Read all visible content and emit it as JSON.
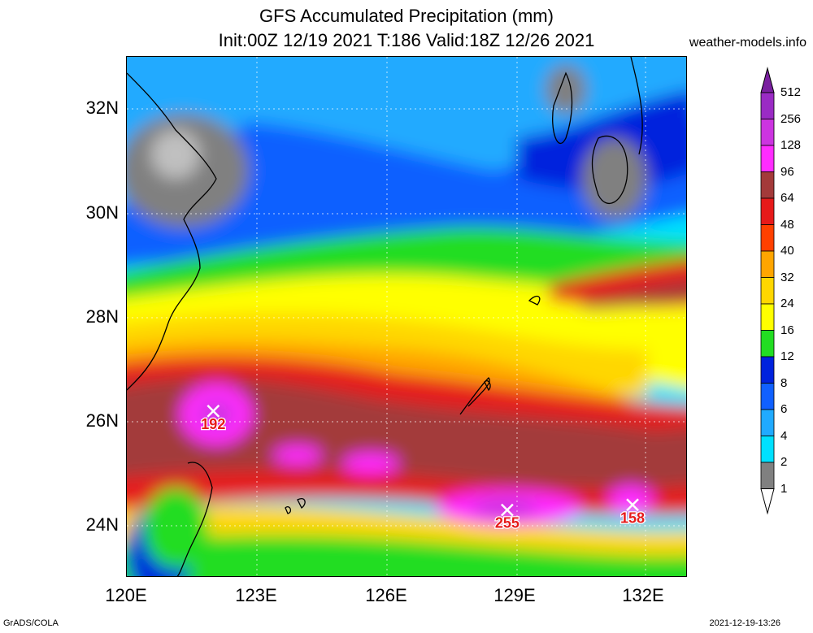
{
  "title": {
    "line1": "GFS Accumulated Precipitation (mm)",
    "line2": "Init:00Z 12/19 2021 T:186 Valid:18Z 12/26 2021"
  },
  "site": "weather-models.info",
  "footer": {
    "left": "GrADS/COLA",
    "right": "2021-12-19-13:26"
  },
  "axes": {
    "lat_labels": [
      "32N",
      "30N",
      "28N",
      "26N",
      "24N"
    ],
    "lon_labels": [
      "120E",
      "123E",
      "126E",
      "129E",
      "132E"
    ]
  },
  "colorbar": {
    "levels": [
      "512",
      "256",
      "128",
      "96",
      "64",
      "48",
      "40",
      "32",
      "24",
      "16",
      "12",
      "8",
      "6",
      "4",
      "2",
      "1"
    ],
    "colors": [
      "#7a1fa0",
      "#9a2bc4",
      "#cc34e0",
      "#ff2cff",
      "#a33a3a",
      "#e61a1a",
      "#ff4000",
      "#ffa500",
      "#ffd700",
      "#ffff00",
      "#22dd22",
      "#0022dd",
      "#1060ff",
      "#20aaff",
      "#00e0ff",
      "#808080",
      "#c0c0c0"
    ]
  },
  "markers": [
    {
      "label": "192",
      "lon": 122.0,
      "lat": 26.2
    },
    {
      "label": "255",
      "lon": 128.8,
      "lat": 24.3
    },
    {
      "label": "158",
      "lon": 131.7,
      "lat": 24.4
    }
  ]
}
